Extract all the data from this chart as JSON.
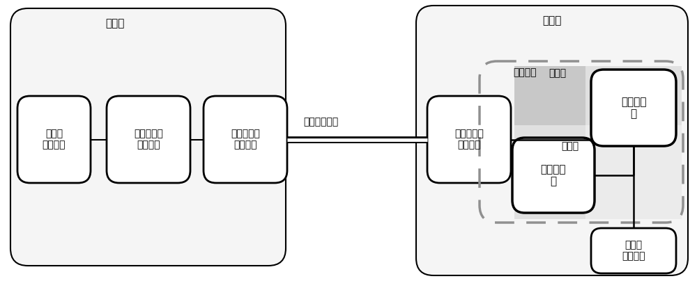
{
  "bg_color": "#ffffff",
  "fig_width": 10.0,
  "fig_height": 4.04,
  "dpi": 100,
  "sender_label": "发送端",
  "receiver_label": "接收端",
  "channel_label": "信道传输部分",
  "detect_label": "探测模块",
  "channel1_label": "通路一",
  "channel2_label": "通路二",
  "block1_label": "信号光\n发送模块",
  "block2_label": "信号光强度\n调制模块",
  "block3_label": "信号光相位\n调制模块",
  "block4_label": "信号光偏振\n补偿模块",
  "measure1_label": "测量装置\n一",
  "measure2_label": "测量装置\n二",
  "lo_label": "本振光\n制备模块",
  "gray_dark": "#c8c8c8",
  "gray_light": "#e0e0e0",
  "gray_lighter": "#ebebeb",
  "dash_color": "#909090"
}
